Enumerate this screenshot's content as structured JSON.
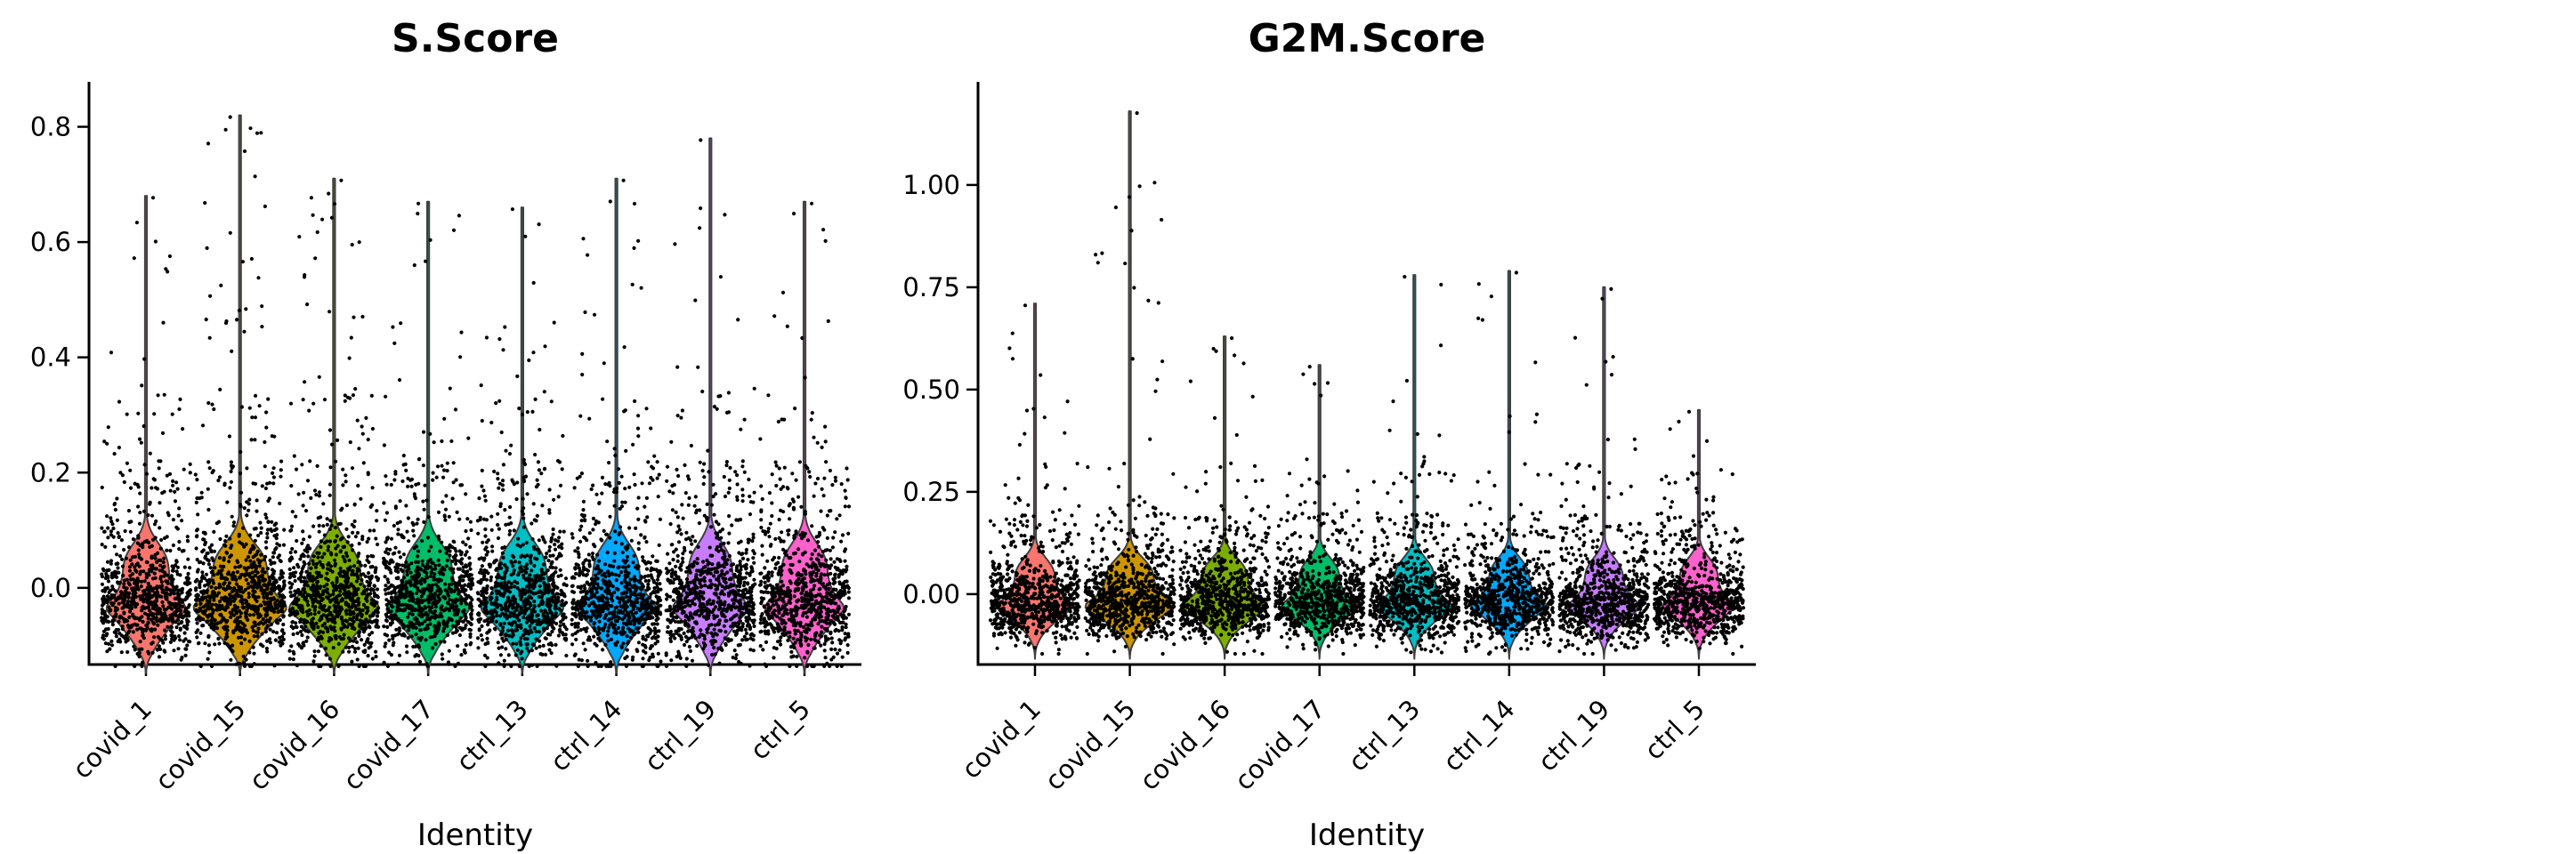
{
  "figure": {
    "background": "#ffffff",
    "point_color": "#000000",
    "outline_color": "#3f3f3f",
    "axis_color": "#000000"
  },
  "chart_data": [
    {
      "type": "violin",
      "title": "S.Score",
      "xlabel": "Identity",
      "categories": [
        "covid_1",
        "covid_15",
        "covid_16",
        "covid_17",
        "ctrl_13",
        "ctrl_14",
        "ctrl_19",
        "ctrl_5"
      ],
      "ylim": [
        -0.133,
        0.878
      ],
      "y_ticks": [
        {
          "v": 0.8,
          "label": "0.8"
        },
        {
          "v": 0.6,
          "label": "0.6"
        },
        {
          "v": 0.4,
          "label": "0.4"
        },
        {
          "v": 0.2,
          "label": "0.2"
        },
        {
          "v": 0.0,
          "label": "0.0"
        }
      ],
      "grid": false,
      "legend": "none",
      "series": [
        {
          "name": "covid_1",
          "color": "#F8766D",
          "max": 0.68,
          "bulk_center": -0.03,
          "bulk_range": [
            -0.13,
            0.13
          ],
          "outlier_count": 15
        },
        {
          "name": "covid_15",
          "color": "#CD9600",
          "max": 0.82,
          "bulk_center": -0.03,
          "bulk_range": [
            -0.14,
            0.13
          ],
          "outlier_count": 40
        },
        {
          "name": "covid_16",
          "color": "#7CAE00",
          "max": 0.71,
          "bulk_center": -0.03,
          "bulk_range": [
            -0.13,
            0.12
          ],
          "outlier_count": 28
        },
        {
          "name": "covid_17",
          "color": "#00BE67",
          "max": 0.67,
          "bulk_center": -0.04,
          "bulk_range": [
            -0.14,
            0.11
          ],
          "outlier_count": 18
        },
        {
          "name": "ctrl_13",
          "color": "#00BFC4",
          "max": 0.66,
          "bulk_center": -0.03,
          "bulk_range": [
            -0.13,
            0.12
          ],
          "outlier_count": 18
        },
        {
          "name": "ctrl_14",
          "color": "#00A9FF",
          "max": 0.71,
          "bulk_center": -0.03,
          "bulk_range": [
            -0.14,
            0.12
          ],
          "outlier_count": 18
        },
        {
          "name": "ctrl_19",
          "color": "#C77CFF",
          "max": 0.78,
          "bulk_center": -0.03,
          "bulk_range": [
            -0.13,
            0.12
          ],
          "outlier_count": 15
        },
        {
          "name": "ctrl_5",
          "color": "#FF61CC",
          "max": 0.67,
          "bulk_center": -0.03,
          "bulk_range": [
            -0.13,
            0.12
          ],
          "outlier_count": 12
        }
      ]
    },
    {
      "type": "violin",
      "title": "G2M.Score",
      "xlabel": "Identity",
      "categories": [
        "covid_1",
        "covid_15",
        "covid_16",
        "covid_17",
        "ctrl_13",
        "ctrl_14",
        "ctrl_19",
        "ctrl_5"
      ],
      "ylim": [
        -0.172,
        1.252
      ],
      "y_ticks": [
        {
          "v": 1.0,
          "label": "1.00"
        },
        {
          "v": 0.75,
          "label": "0.75"
        },
        {
          "v": 0.5,
          "label": "0.50"
        },
        {
          "v": 0.25,
          "label": "0.25"
        },
        {
          "v": 0.0,
          "label": "0.00"
        }
      ],
      "grid": false,
      "legend": "none",
      "series": [
        {
          "name": "covid_1",
          "color": "#F8766D",
          "max": 0.71,
          "bulk_center": -0.03,
          "bulk_range": [
            -0.14,
            0.1
          ],
          "outlier_count": 14
        },
        {
          "name": "covid_15",
          "color": "#CD9600",
          "max": 1.18,
          "bulk_center": -0.02,
          "bulk_range": [
            -0.15,
            0.12
          ],
          "outlier_count": 20
        },
        {
          "name": "covid_16",
          "color": "#7CAE00",
          "max": 0.63,
          "bulk_center": -0.02,
          "bulk_range": [
            -0.14,
            0.11
          ],
          "outlier_count": 12
        },
        {
          "name": "covid_17",
          "color": "#00BE67",
          "max": 0.56,
          "bulk_center": -0.04,
          "bulk_range": [
            -0.14,
            0.1
          ],
          "outlier_count": 9
        },
        {
          "name": "ctrl_13",
          "color": "#00BFC4",
          "max": 0.78,
          "bulk_center": -0.03,
          "bulk_range": [
            -0.14,
            0.1
          ],
          "outlier_count": 11
        },
        {
          "name": "ctrl_14",
          "color": "#00A9FF",
          "max": 0.79,
          "bulk_center": -0.03,
          "bulk_range": [
            -0.14,
            0.1
          ],
          "outlier_count": 11
        },
        {
          "name": "ctrl_19",
          "color": "#C77CFF",
          "max": 0.75,
          "bulk_center": -0.03,
          "bulk_range": [
            -0.14,
            0.1
          ],
          "outlier_count": 10
        },
        {
          "name": "ctrl_5",
          "color": "#FF61CC",
          "max": 0.45,
          "bulk_center": -0.03,
          "bulk_range": [
            -0.13,
            0.1
          ],
          "outlier_count": 7
        }
      ]
    }
  ]
}
